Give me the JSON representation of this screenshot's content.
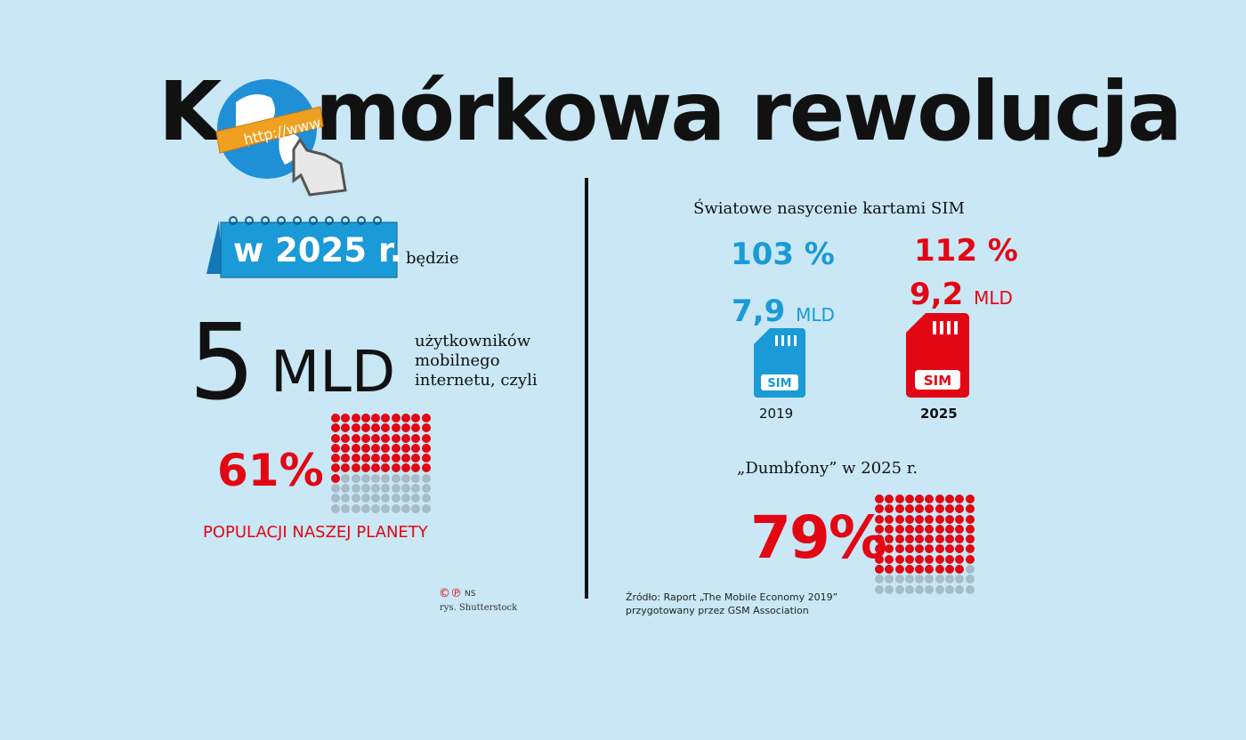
{
  "title": {
    "prefix": "K",
    "globe_label": "http://www",
    "suffix": "mórkowa rewolucja"
  },
  "left": {
    "calendar_label": "w 2025 r.",
    "after_calendar": "będzie",
    "big_number": "5",
    "big_unit": "MLD",
    "desc_lines": [
      "użytkowników",
      "mobilnego",
      "internetu, czyli"
    ],
    "percent": "61%",
    "percent_value": 61,
    "caption": "POPULACJI NASZEJ PLANETY",
    "credit_marks": "©℗",
    "credit_initials": "NS",
    "credit_line": "rys. Shutterstock"
  },
  "right": {
    "heading": "Światowe nasycenie kartami SIM",
    "items": [
      {
        "percent": "103 %",
        "amount": "7,9",
        "unit": "MLD",
        "year": "2019",
        "sim_label": "SIM",
        "color": "#1a9ad6"
      },
      {
        "percent": "112 %",
        "amount": "9,2",
        "unit": "MLD",
        "year": "2025",
        "sim_label": "SIM",
        "color": "#e30613"
      }
    ],
    "dumb_heading": "„Dumbfony”  w 2025 r.",
    "dumb_percent": "79%",
    "dumb_value": 79,
    "source_lines": [
      "Źródło: Raport „The Mobile Economy 2019”",
      "przygotowany przez GSM Association"
    ]
  },
  "colors": {
    "background": "#c9e7f5",
    "red": "#e30613",
    "blue": "#1a9ad6",
    "grey_dot": "#a7bcc6"
  }
}
